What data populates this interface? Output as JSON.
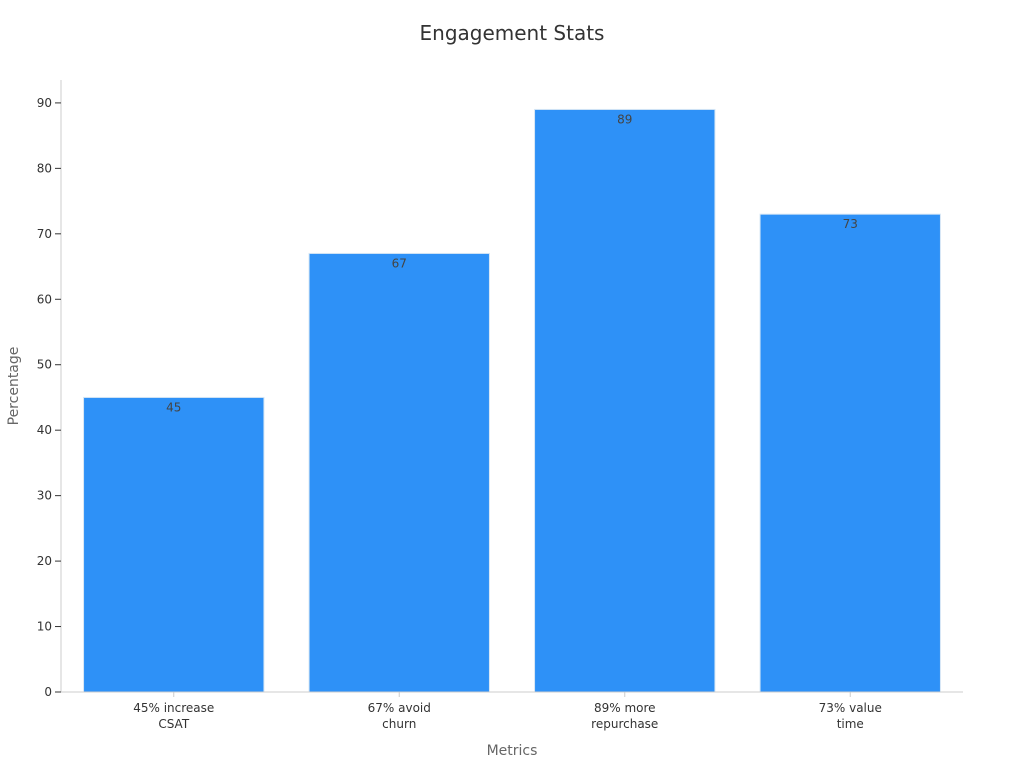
{
  "chart_data": {
    "type": "bar",
    "title": "Engagement Stats",
    "xlabel": "Metrics",
    "ylabel": "Percentage",
    "categories": [
      [
        "45% increase",
        "CSAT"
      ],
      [
        "67% avoid",
        "churn"
      ],
      [
        "89% more",
        "repurchase"
      ],
      [
        "73% value",
        "time"
      ]
    ],
    "values": [
      45,
      67,
      89,
      73
    ],
    "ylim": [
      0,
      93.5
    ],
    "yticks": [
      0,
      10,
      20,
      30,
      40,
      50,
      60,
      70,
      80,
      90
    ],
    "grid": false,
    "legend": "none",
    "colors": {
      "bar": "#2e91f7",
      "bar_edge": "#d6e6f5",
      "axis": "#cccccc",
      "tick": "#333333"
    }
  }
}
